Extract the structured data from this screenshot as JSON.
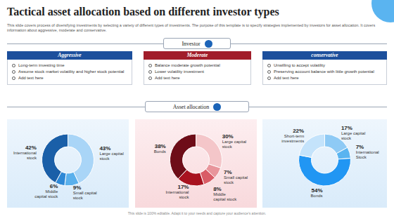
{
  "title": "Tactical asset allocation based on different investor types",
  "subtitle": "This slide covers process of diversifying investments by selecting a variety of different types of investments. The purpose of this template is to specify strategies implemented by investors for asset allocation. It covers information about aggressive, moderate and conservative.",
  "investor_label": "Investor",
  "columns": [
    {
      "heading": "Aggressive",
      "color": "#1c4f9c",
      "items": [
        "Long-term investing time",
        "Assume stock market volatility and higher stock potential",
        "Add text here"
      ]
    },
    {
      "heading": "Moderate",
      "color": "#a11d2a",
      "items": [
        "Balance moderate growth potential",
        "Lower volatility investment",
        "Add text here"
      ]
    },
    {
      "heading": "conservative",
      "color": "#1c4f9c",
      "items": [
        "Unwilling to accept volatility",
        "Preserving account balance with little growth potential",
        "Add text here"
      ]
    }
  ],
  "allocation_label": "Asset allocation",
  "chart_data": [
    {
      "type": "donut",
      "categories": [
        "Large capital stock",
        "Small capital stock",
        "Middle capital stock",
        "International stock"
      ],
      "values": [
        43,
        9,
        6,
        42
      ],
      "value_labels": [
        "43%",
        "9%",
        "6%",
        "42%"
      ],
      "colors": [
        "#a9d5f7",
        "#5ab0ec",
        "#2e88d6",
        "#1a5fa8"
      ],
      "data_labels": true
    },
    {
      "type": "donut",
      "categories": [
        "Large capital stock",
        "Small capital stock",
        "Middle capital stock",
        "International stock",
        "Bonds"
      ],
      "values": [
        30,
        7,
        8,
        17,
        38
      ],
      "value_labels": [
        "30%",
        "7%",
        "8%",
        "17%",
        "38%"
      ],
      "colors": [
        "#f4c6c9",
        "#e8959b",
        "#d95c66",
        "#a8121f",
        "#6e0d18"
      ],
      "data_labels": true
    },
    {
      "type": "donut",
      "categories": [
        "Large capital stock",
        "International Stock",
        "Bonds",
        "Short-term investments"
      ],
      "values": [
        17,
        7,
        54,
        22
      ],
      "value_labels": [
        "17%",
        "7%",
        "54%",
        "22%"
      ],
      "colors": [
        "#8ecaf5",
        "#5ab4f0",
        "#2196f3",
        "#c4e3fb"
      ],
      "data_labels": true
    }
  ],
  "footer": "This slide is 100% editable. Adapt it to your needs and capture your audience's attention."
}
